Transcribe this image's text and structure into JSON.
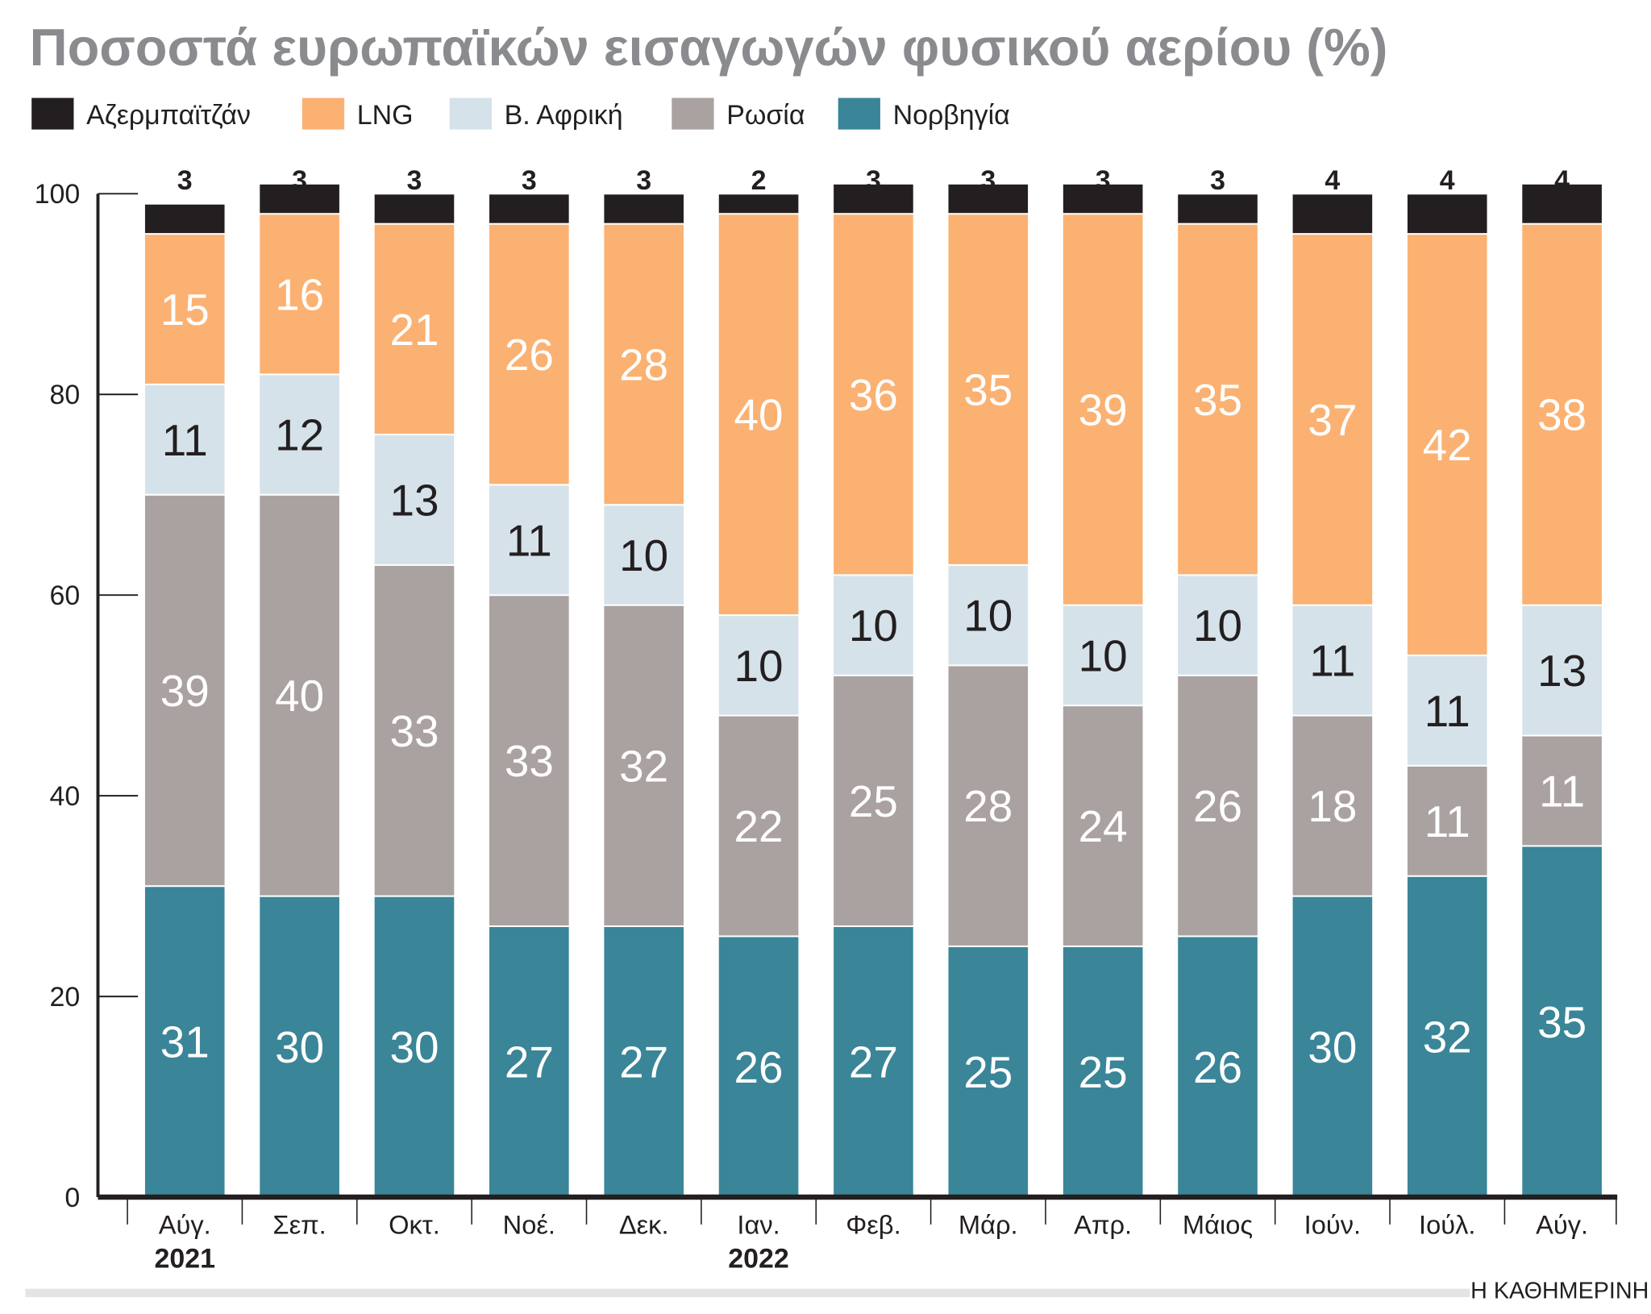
{
  "chart_data": {
    "type": "bar",
    "stacked": true,
    "title": "Ποσοστά ευρωπαϊκών εισαγωγών φυσικού αερίου (%)",
    "categories": [
      "Αύγ.",
      "Σεπ.",
      "Οκτ.",
      "Νοέ.",
      "Δεκ.",
      "Ιαν.",
      "Φεβ.",
      "Μάρ.",
      "Απρ.",
      "Μάιος",
      "Ιούν.",
      "Ιούλ.",
      "Αύγ."
    ],
    "year_labels": [
      {
        "index": 0,
        "label": "2021"
      },
      {
        "index": 5,
        "label": "2022"
      }
    ],
    "ylim": [
      0,
      100
    ],
    "yticks": [
      0,
      20,
      40,
      60,
      80,
      100
    ],
    "legend_position": "top-left",
    "grid": false,
    "series": [
      {
        "name": "Νορβηγία",
        "color": "#3a8598",
        "label_color": "#ffffff",
        "values": [
          31,
          30,
          30,
          27,
          27,
          26,
          27,
          25,
          25,
          26,
          30,
          32,
          35
        ]
      },
      {
        "name": "Ρωσία",
        "color": "#a9a2a0",
        "label_color": "#ffffff",
        "values": [
          39,
          40,
          33,
          33,
          32,
          22,
          25,
          28,
          24,
          26,
          18,
          11,
          11
        ]
      },
      {
        "name": "Β. Αφρική",
        "color": "#d5e2ea",
        "label_color": "#231f20",
        "values": [
          11,
          12,
          13,
          11,
          10,
          10,
          10,
          10,
          10,
          10,
          11,
          11,
          13
        ]
      },
      {
        "name": "LNG",
        "color": "#fbb172",
        "label_color": "#ffffff",
        "values": [
          15,
          16,
          21,
          26,
          28,
          40,
          36,
          35,
          39,
          35,
          37,
          42,
          38
        ]
      },
      {
        "name": "Αζερμπαϊτζάν",
        "color": "#231f20",
        "label_color": "#231f20",
        "values": [
          3,
          3,
          3,
          3,
          3,
          2,
          3,
          3,
          3,
          3,
          4,
          4,
          4
        ]
      }
    ],
    "legend_order": [
      "Αζερμπαϊτζάν",
      "LNG",
      "Β. Αφρική",
      "Ρωσία",
      "Νορβηγία"
    ]
  },
  "source": "Η ΚΑΘΗΜΕΡΙΝΗ",
  "colors": {
    "title": "#8a8b8e",
    "axis": "#231f20",
    "footer_bar": "#e4e4e4"
  }
}
